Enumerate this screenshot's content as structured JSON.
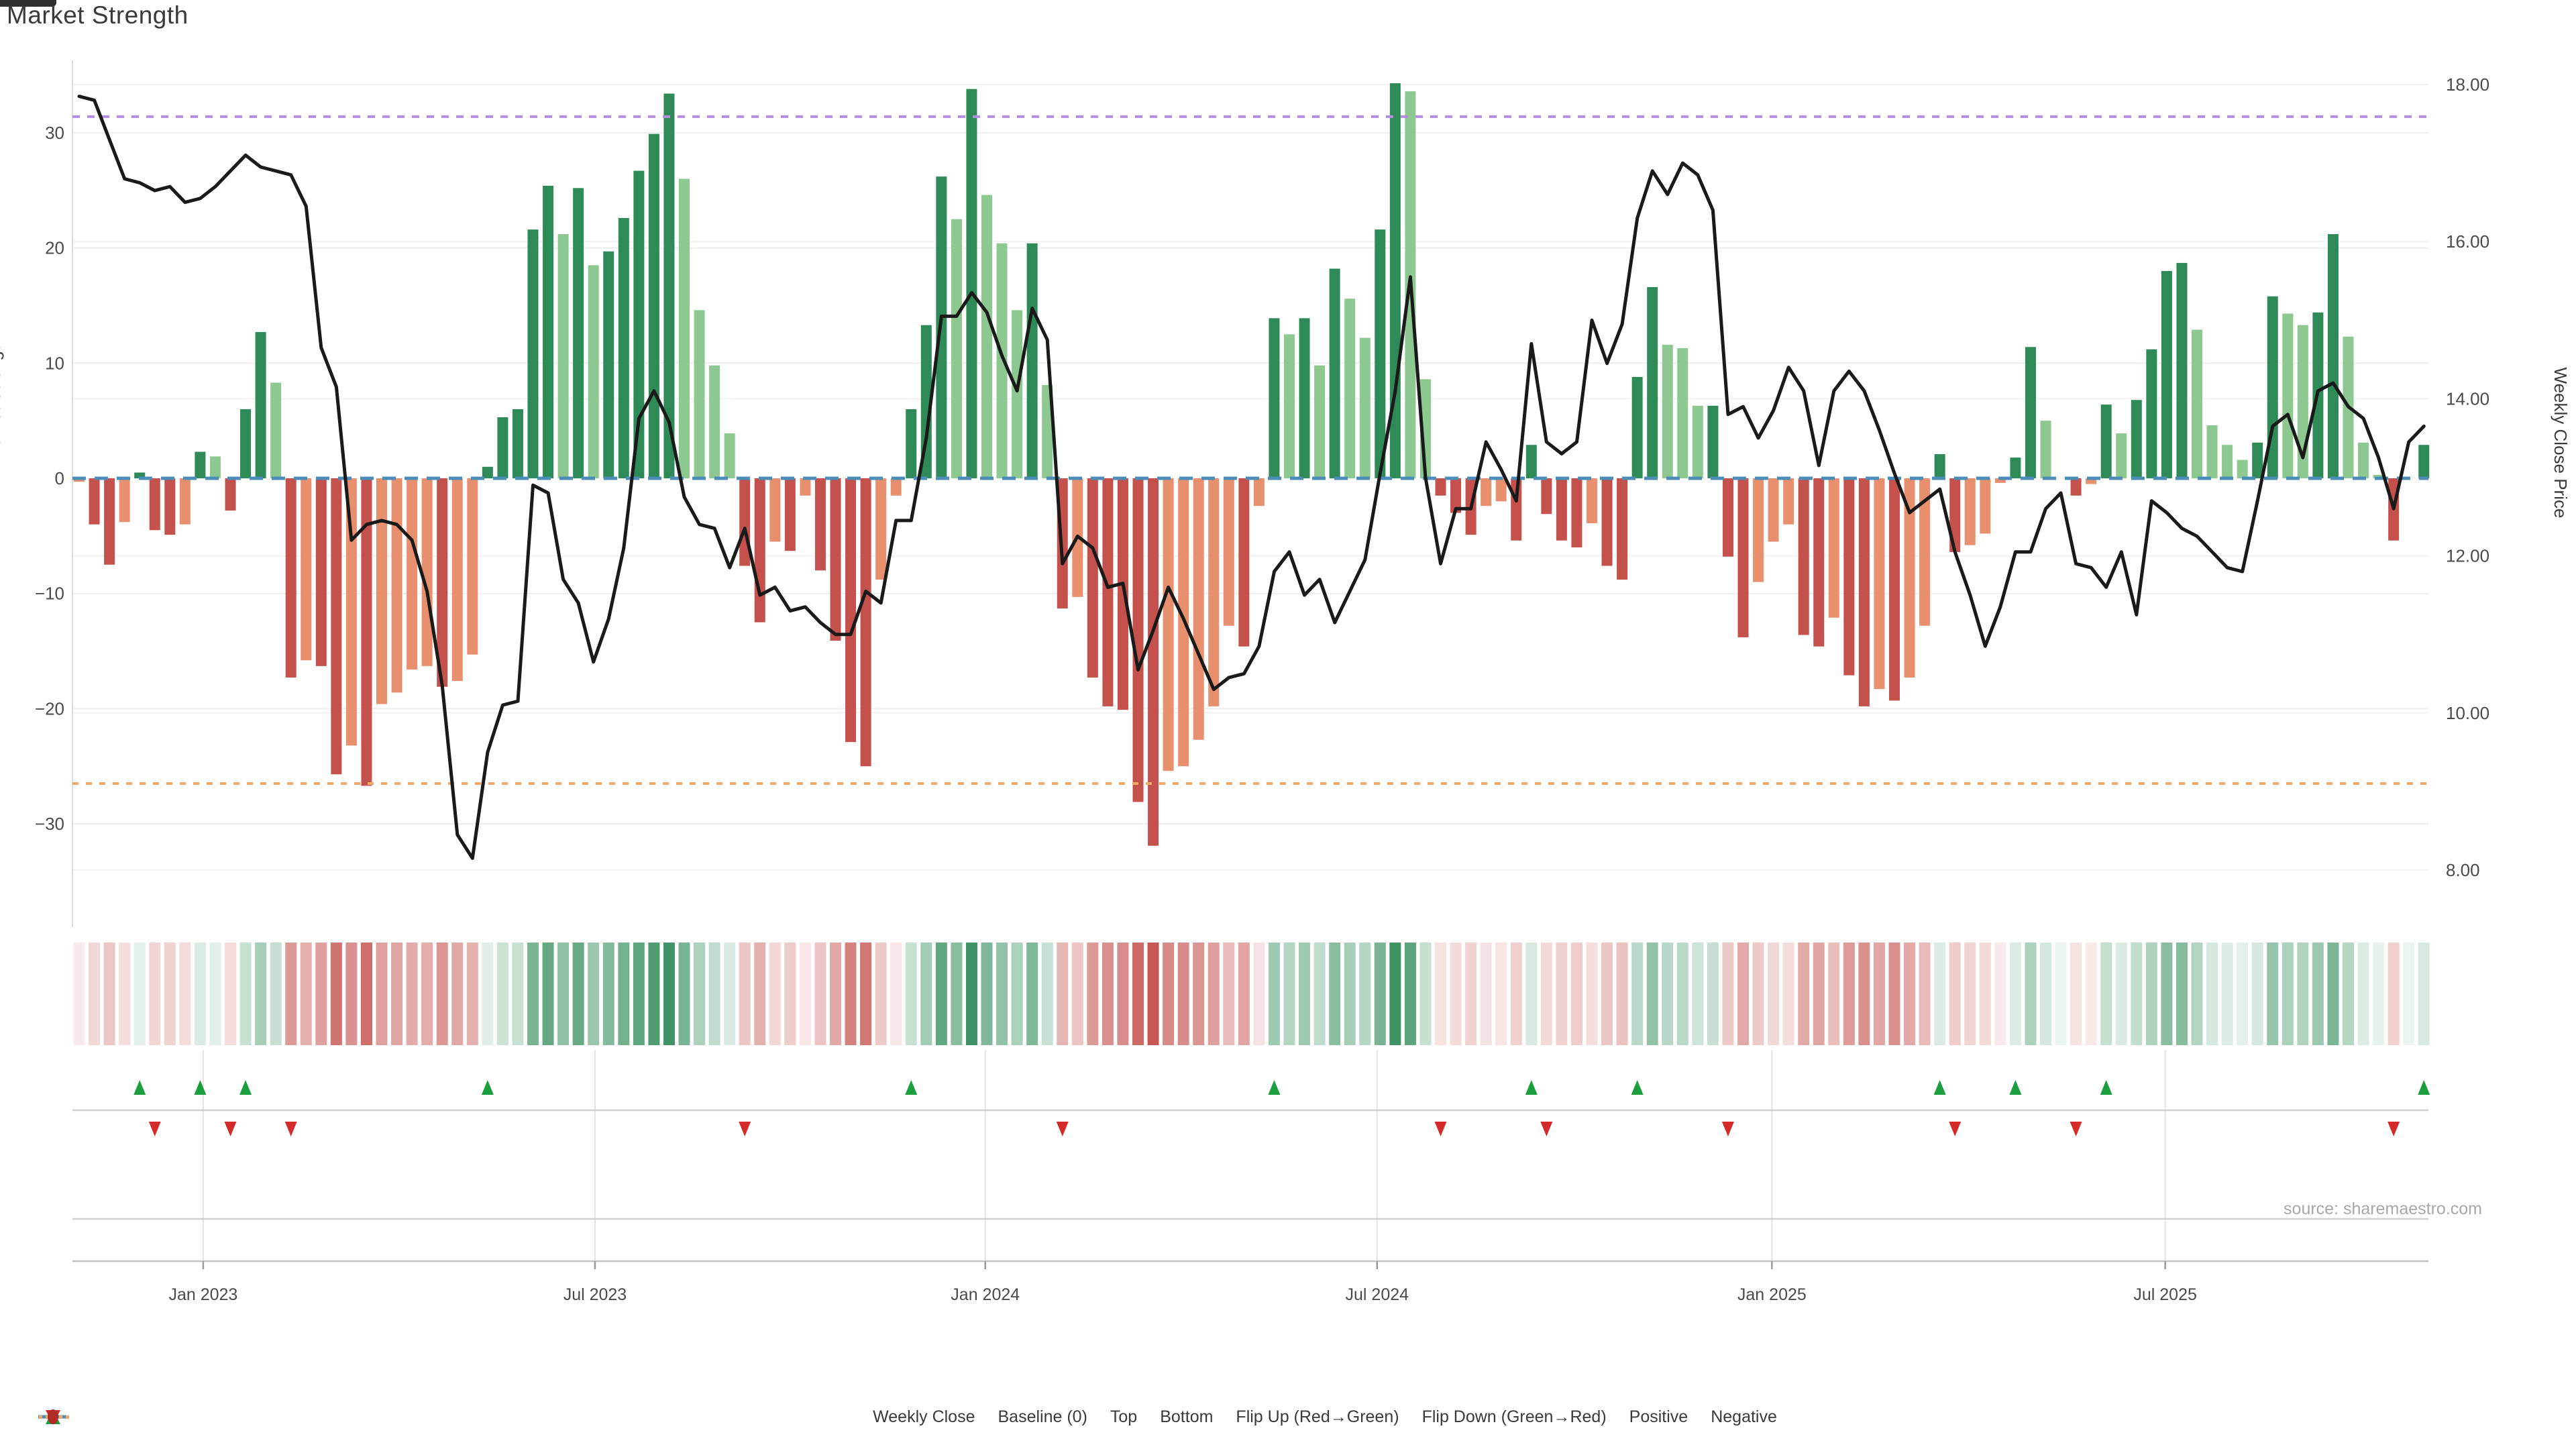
{
  "title": "Market Strength",
  "source": "source: sharemaestro.com",
  "left_axis": {
    "label": "Market Strength",
    "tick_labels": [
      "30",
      "20",
      "10",
      "0",
      "−10",
      "−20",
      "−30"
    ]
  },
  "right_axis": {
    "label": "Weekly Close Price",
    "tick_labels": [
      "18.00",
      "16.00",
      "14.00",
      "12.00",
      "10.00",
      "8.00"
    ]
  },
  "legend": [
    {
      "key": "weekly-close",
      "swatch": "line",
      "color": "#1a1a1a",
      "label": "Weekly Close"
    },
    {
      "key": "baseline",
      "swatch": "dashes",
      "color": "#4c8cb8",
      "label": "Baseline (0)"
    },
    {
      "key": "top",
      "swatch": "dots",
      "color": "#b48ee0",
      "label": "Top"
    },
    {
      "key": "bottom",
      "swatch": "dots",
      "color": "#f2a86a",
      "label": "Bottom"
    },
    {
      "key": "flip-up",
      "swatch": "triangle-up",
      "color": "#1b9e3e",
      "label": "Flip Up (Red→Green)"
    },
    {
      "key": "flip-down",
      "swatch": "triangle-down",
      "color": "#d42a2a",
      "label": "Flip Down (Green→Red)"
    },
    {
      "key": "positive",
      "swatch": "circle",
      "color": "#1d8a44",
      "label": "Positive"
    },
    {
      "key": "negative",
      "swatch": "circle",
      "color": "#b02c24",
      "label": "Negative"
    }
  ],
  "colors": {
    "bar_green_dark": "#2e8b57",
    "bar_green_light": "#8cc88f",
    "bar_red_dark": "#c5514d",
    "bar_red_light": "#e8906e",
    "price_line": "#1a1a1a",
    "baseline": "#4c8cb8",
    "top_line": "#b48ee0",
    "bottom_line": "#f2a86a",
    "flip_up": "#1b9e3e",
    "flip_down": "#d42a2a",
    "heat_green": "#2e8b57",
    "heat_red": "#c0443f"
  },
  "chart_data": {
    "type": "combo",
    "title": "Market Strength",
    "frequency": "weekly",
    "start_date": "2022-11-04",
    "n_weeks": 156,
    "y_left": {
      "label": "Market Strength",
      "ticks": [
        30,
        20,
        10,
        0,
        -10,
        -20,
        -30
      ],
      "range": [
        -35,
        36
      ]
    },
    "y_right": {
      "label": "Weekly Close Price",
      "ticks": [
        18,
        16,
        14,
        12,
        10,
        8
      ],
      "range": [
        7.45,
        18.32
      ]
    },
    "x_ticks": [
      {
        "label": "Jan 2023",
        "week": 8.2
      },
      {
        "label": "Jul 2023",
        "week": 34.1
      },
      {
        "label": "Jan 2024",
        "week": 59.9
      },
      {
        "label": "Jul 2024",
        "week": 85.8
      },
      {
        "label": "Jan 2025",
        "week": 111.9
      },
      {
        "label": "Jul 2025",
        "week": 137.9
      }
    ],
    "baseline": 0,
    "top_level": 31.4,
    "bottom_level": -26.5,
    "legend_position": "bottom",
    "grid": true,
    "series": [
      {
        "name": "Market Strength",
        "type": "bar",
        "axis": "left",
        "values": [
          -0.3,
          -4,
          -7.5,
          -3.8,
          0.5,
          -4.5,
          -4.9,
          -4,
          2.3,
          1.9,
          -2.8,
          6,
          12.7,
          8.3,
          -17.3,
          -15.8,
          -16.3,
          -25.7,
          -23.2,
          -26.7,
          -19.6,
          -18.6,
          -16.6,
          -16.3,
          -18.1,
          -17.6,
          -15.3,
          1,
          5.3,
          6,
          21.6,
          25.4,
          21.2,
          25.2,
          18.5,
          19.7,
          22.6,
          26.7,
          29.9,
          33.4,
          26,
          14.6,
          9.8,
          3.9,
          -7.6,
          -12.5,
          -5.5,
          -6.3,
          -1.5,
          -8,
          -14.1,
          -22.9,
          -25,
          -8.8,
          -1.5,
          6,
          13.3,
          26.2,
          22.5,
          33.8,
          24.6,
          20.4,
          14.6,
          20.4,
          8.1,
          -11.3,
          -10.3,
          -17.3,
          -19.8,
          -20.1,
          -28.1,
          -31.9,
          -25.4,
          -25,
          -22.7,
          -19.8,
          -12.8,
          -14.6,
          -2.4,
          13.9,
          12.5,
          13.9,
          9.8,
          18.2,
          15.6,
          12.2,
          21.6,
          34.3,
          33.6,
          8.6,
          -1.5,
          -3,
          -4.9,
          -2.4,
          -2,
          -5.4,
          2.9,
          -3.1,
          -5.4,
          -6,
          -3.9,
          -7.6,
          -8.8,
          8.8,
          16.6,
          11.6,
          11.3,
          6.3,
          6.3,
          -6.8,
          -13.8,
          -9,
          -5.5,
          -4,
          -13.6,
          -14.6,
          -12.1,
          -17.1,
          -19.8,
          -18.3,
          -19.3,
          -17.3,
          -12.8,
          2.1,
          -6.4,
          -5.8,
          -4.8,
          -0.4,
          1.8,
          11.4,
          5,
          0,
          -1.5,
          -0.5,
          6.4,
          3.9,
          6.8,
          11.2,
          18,
          18.7,
          12.9,
          4.6,
          2.9,
          1.6,
          3.1,
          15.8,
          14.3,
          13.3,
          14.4,
          21.2,
          12.3,
          3.1,
          0.3,
          -5.4,
          0,
          2.9
        ],
        "shades": "LDDLDDDLDLDDDLDLDDLDLLLLDLLDDDDDLDLDDDDDLLLLDDLDLDDDDLLDDDLDLLLDLDLDDDDDLLLLLDLDLDLDLLDDLLDDDLLDDDDDLDDDDLLLDDDLLLDDLDDLDLLDDLLLDDLLDLDLDDDDLLLLDDLLDDLLLDLD"
      },
      {
        "name": "Weekly Close",
        "type": "line",
        "axis": "right",
        "values": [
          17.85,
          17.8,
          17.3,
          16.8,
          16.75,
          16.65,
          16.7,
          16.5,
          16.55,
          16.7,
          16.9,
          17.1,
          16.95,
          16.9,
          16.85,
          16.45,
          14.65,
          14.15,
          12.2,
          12.4,
          12.45,
          12.4,
          12.2,
          11.55,
          10.35,
          8.45,
          8.15,
          9.5,
          10.1,
          10.15,
          12.9,
          12.8,
          11.7,
          11.4,
          10.65,
          11.2,
          12.1,
          13.75,
          14.1,
          13.7,
          12.75,
          12.4,
          12.35,
          11.85,
          12.35,
          11.5,
          11.6,
          11.3,
          11.35,
          11.15,
          11,
          11,
          11.55,
          11.4,
          12.45,
          12.45,
          13.5,
          15.05,
          15.05,
          15.35,
          15.1,
          14.55,
          14.1,
          15.15,
          14.75,
          11.9,
          12.25,
          12.1,
          11.6,
          11.65,
          10.55,
          11.05,
          11.6,
          11.2,
          10.75,
          10.3,
          10.45,
          10.5,
          10.85,
          11.8,
          12.05,
          11.5,
          11.7,
          11.15,
          11.55,
          11.95,
          13.05,
          14.1,
          15.55,
          13,
          11.9,
          12.6,
          12.6,
          13.45,
          13.1,
          12.7,
          14.7,
          13.45,
          13.3,
          13.45,
          15,
          14.45,
          14.95,
          16.3,
          16.9,
          16.6,
          17,
          16.85,
          16.4,
          13.8,
          13.9,
          13.5,
          13.85,
          14.4,
          14.1,
          13.15,
          14.1,
          14.35,
          14.1,
          13.6,
          13.05,
          12.55,
          12.7,
          12.85,
          12.05,
          11.5,
          10.85,
          11.35,
          12.05,
          12.05,
          12.6,
          12.8,
          11.9,
          11.85,
          11.6,
          12.05,
          11.25,
          12.7,
          12.55,
          12.35,
          12.25,
          12.05,
          11.85,
          11.8,
          12.7,
          13.65,
          13.8,
          13.25,
          14.1,
          14.2,
          13.9,
          13.75,
          13.25,
          12.6,
          13.45,
          13.65
        ]
      }
    ],
    "flip_up_weeks": [
      4,
      8,
      11,
      27,
      55,
      79,
      96,
      103,
      123,
      128,
      134,
      155
    ],
    "flip_down_weeks": [
      5,
      10,
      14,
      44,
      65,
      90,
      97,
      109,
      124,
      132,
      153
    ]
  }
}
